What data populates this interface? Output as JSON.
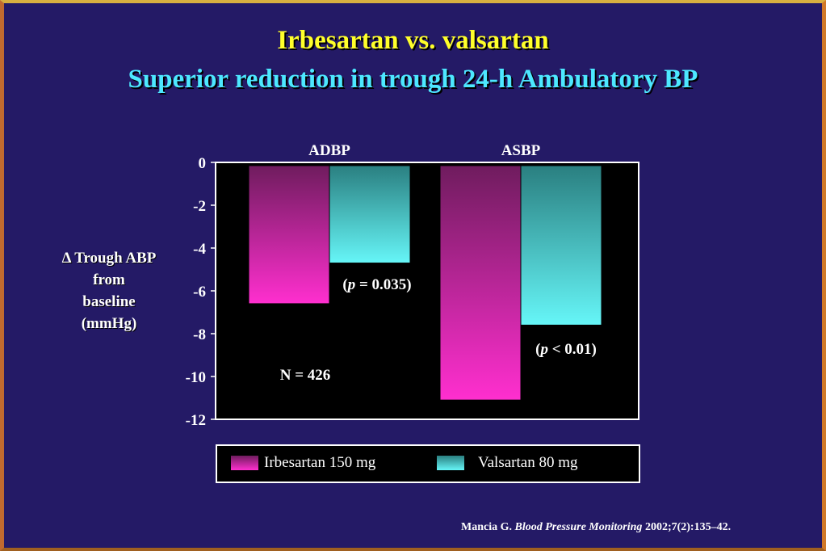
{
  "slide": {
    "title_line1": "Irbesartan vs. valsartan",
    "title_line2": "Superior reduction in trough 24-h Ambulatory BP",
    "ylabel_lines": [
      "Δ Trough ABP",
      "from",
      "baseline",
      "(mmHg)"
    ],
    "colors": {
      "background": "#241a66",
      "title1": "#ffff2a",
      "title2": "#4de8ff",
      "irbesartan": "#ff2fcf",
      "valsartan": "#66f6f8"
    },
    "citation": {
      "author": "Mancia G.",
      "journal": "Blood Pressure Monitoring",
      "ref": "2002;7(2):135–42."
    }
  },
  "chart_data": {
    "type": "bar",
    "title": "Superior reduction in trough 24-h Ambulatory BP",
    "categories": [
      "ADBP",
      "ASBP"
    ],
    "series": [
      {
        "name": "Irbesartan 150 mg",
        "values": [
          -6.6,
          -11.1
        ],
        "color": "#ff2fcf"
      },
      {
        "name": "Valsartan 80 mg",
        "values": [
          -4.7,
          -7.6
        ],
        "color": "#66f6f8"
      }
    ],
    "xlabel": "",
    "ylabel": "Δ Trough ABP from baseline (mmHg)",
    "ylim": [
      -12,
      0
    ],
    "yticks": [
      "0",
      "-2",
      "-4",
      "-6",
      "-8",
      "-10",
      "-12"
    ],
    "ytick_values": [
      0,
      -2,
      -4,
      -6,
      -8,
      -10,
      -12
    ],
    "grid": false,
    "legend_position": "bottom",
    "annotations": {
      "adbp_p": "= 0.035",
      "asbp_p": "< 0.01",
      "p_symbol": "p",
      "sample_size": "N = 426"
    }
  }
}
